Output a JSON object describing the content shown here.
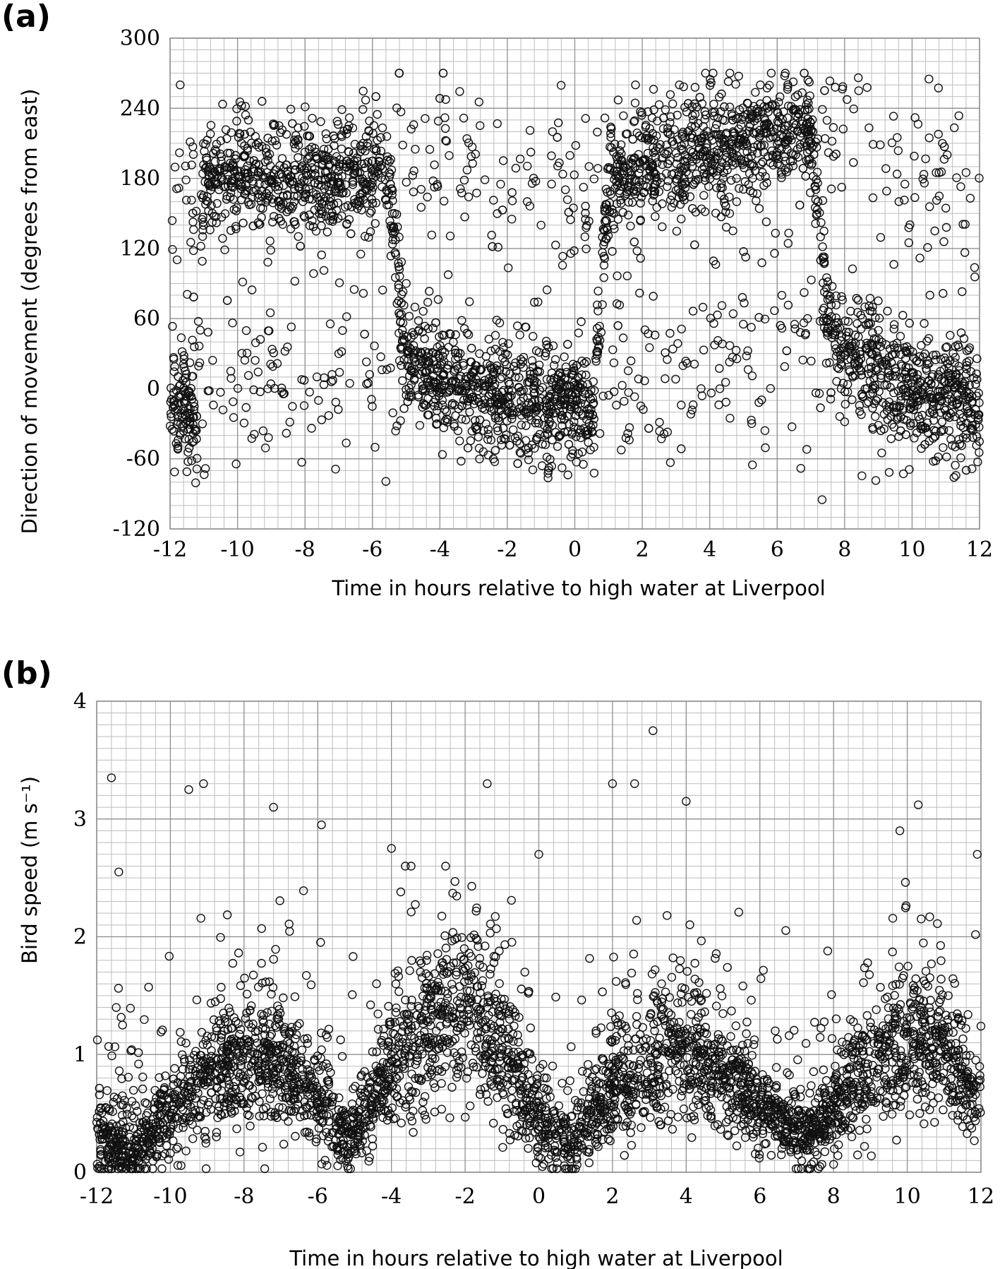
{
  "chart_data": [
    {
      "panel_label": "(a)",
      "type": "scatter",
      "title": "",
      "xlabel": "Time in hours relative to high water at Liverpool",
      "ylabel": "Direction of movement (degrees from east)",
      "xlim": [
        -12,
        12
      ],
      "ylim": [
        -120,
        300
      ],
      "xticks": [
        -12,
        -10,
        -8,
        -6,
        -4,
        -2,
        0,
        2,
        4,
        6,
        8,
        10,
        12
      ],
      "yticks": [
        -120,
        -60,
        0,
        60,
        120,
        180,
        240,
        300
      ],
      "xtick_labels": [
        "-12",
        "-10",
        "-8",
        "-6",
        "-4",
        "-2",
        "0",
        "2",
        "4",
        "6",
        "8",
        "10",
        "12"
      ],
      "ytick_labels": [
        "-120",
        "-60",
        "0",
        "60",
        "120",
        "180",
        "240",
        "300"
      ],
      "grid": true,
      "marker": "open-circle",
      "point_count_estimate": 4800,
      "series": [
        {
          "x": [
            -12.0,
            -11.8,
            -11.6,
            -11.4,
            -11.2,
            -11.0,
            -10.0,
            -9.0,
            -8.0,
            -7.0,
            -6.0,
            -5.5,
            -5.0,
            -4.5,
            -4.0,
            -3.0,
            -2.0,
            -1.0,
            0.0,
            0.5,
            1.0,
            1.5,
            2.0,
            3.0,
            4.0,
            5.0,
            6.0,
            7.0,
            7.5,
            8.0,
            9.0,
            10.0,
            11.0,
            11.5,
            12.0
          ],
          "y": [
            -10,
            -20,
            0,
            -20,
            -40,
            180,
            185,
            180,
            180,
            185,
            185,
            180,
            20,
            20,
            10,
            -5,
            -10,
            -12,
            -20,
            -25,
            180,
            185,
            190,
            200,
            205,
            210,
            215,
            220,
            60,
            30,
            10,
            0,
            -5,
            -10,
            -15
          ]
        }
      ],
      "annotated_points": {
        "x": [
          -11.7,
          -10.2,
          -9.1,
          -8.3,
          -7.6,
          -7.0,
          -4.9,
          -3.2,
          -2.2,
          -1.0,
          0.3,
          1.8,
          3.1,
          4.3,
          5.5,
          6.9,
          8.6,
          9.1,
          10.5,
          10.9,
          11.6
        ],
        "y": [
          260,
          15,
          0,
          92,
          -10,
          30,
          35,
          214,
          175,
          140,
          130,
          260,
          260,
          0,
          260,
          60,
          70,
          -55,
          265,
          210,
          185
        ]
      }
    },
    {
      "panel_label": "(b)",
      "type": "scatter",
      "title": "",
      "xlabel": "Time in hours relative to high water at Liverpool",
      "ylabel": "Bird speed (m s⁻¹)",
      "xlim": [
        -12,
        12
      ],
      "ylim": [
        0,
        4
      ],
      "xticks": [
        -12,
        -10,
        -8,
        -6,
        -4,
        -2,
        0,
        2,
        4,
        6,
        8,
        10,
        12
      ],
      "yticks": [
        0,
        1,
        2,
        3,
        4
      ],
      "xtick_labels": [
        "-12",
        "-10",
        "-8",
        "-6",
        "-4",
        "-2",
        "0",
        "2",
        "4",
        "6",
        "8",
        "10",
        "12"
      ],
      "ytick_labels": [
        "0",
        "1",
        "2",
        "3",
        "4"
      ],
      "grid": true,
      "marker": "open-circle",
      "point_count_estimate": 4800,
      "series": [
        {
          "x": [
            -12.0,
            -11.0,
            -10.0,
            -9.0,
            -8.0,
            -7.0,
            -6.0,
            -5.2,
            -4.5,
            -4.0,
            -3.0,
            -2.0,
            -1.0,
            0.0,
            0.8,
            2.0,
            3.0,
            4.0,
            5.0,
            6.0,
            7.3,
            8.0,
            9.0,
            10.0,
            11.0,
            12.0
          ],
          "y": [
            0.3,
            0.15,
            0.5,
            0.8,
            0.95,
            0.9,
            0.55,
            0.25,
            0.6,
            0.9,
            1.2,
            1.45,
            1.0,
            0.45,
            0.2,
            0.7,
            0.95,
            1.05,
            0.8,
            0.55,
            0.3,
            0.55,
            0.85,
            1.1,
            1.0,
            0.6
          ]
        }
      ],
      "annotated_points": {
        "x": [
          -11.6,
          -11.4,
          -9.5,
          -9.1,
          -7.2,
          -5.9,
          -4.0,
          -1.4,
          0.0,
          2.0,
          2.6,
          3.1,
          4.0,
          9.8,
          10.3,
          11.9
        ],
        "y": [
          3.35,
          2.55,
          3.25,
          3.3,
          3.1,
          2.95,
          2.75,
          3.3,
          2.7,
          3.3,
          3.3,
          3.75,
          3.15,
          2.9,
          3.12,
          2.7
        ]
      }
    }
  ]
}
